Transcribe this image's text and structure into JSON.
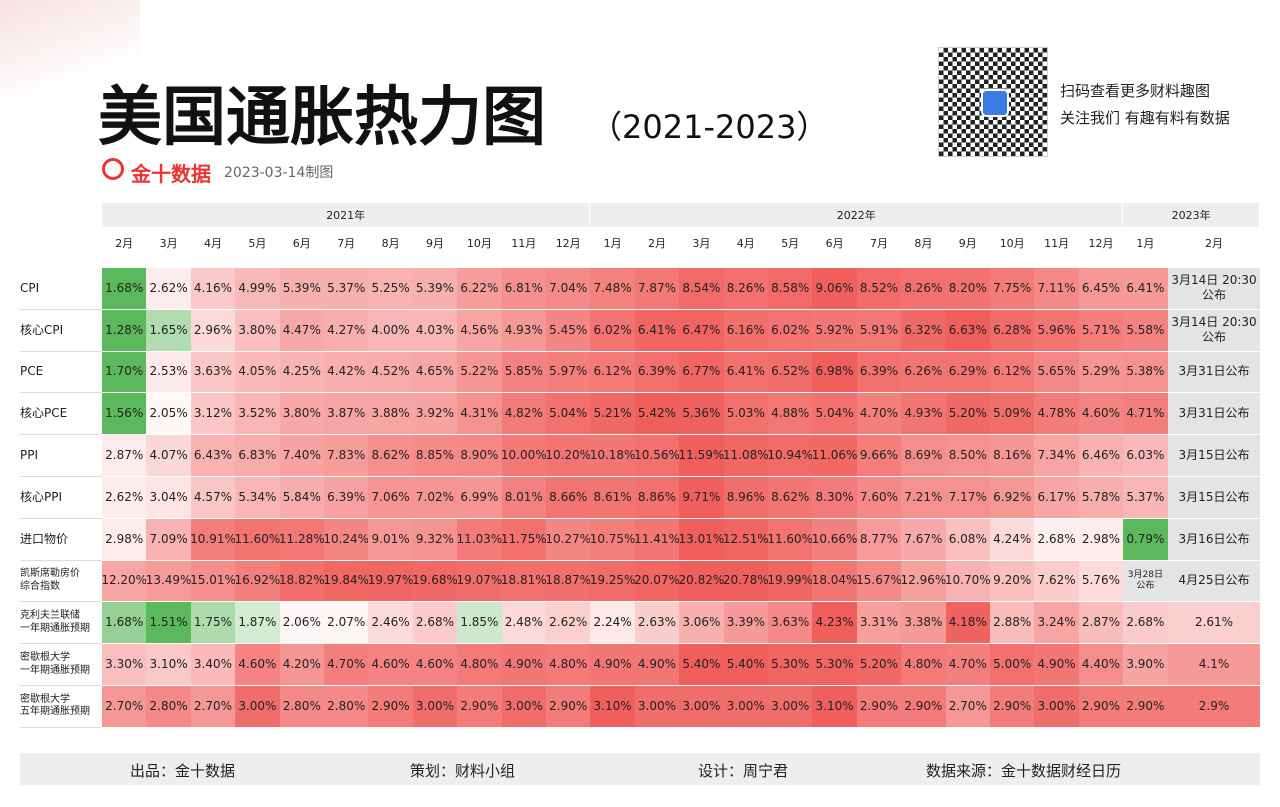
{
  "header": {
    "title": "美国通胀热力图",
    "period": "（2021-2023）",
    "brand": "金十数据",
    "date": "2023-03-14制图",
    "qr_lines": [
      "扫码查看更多财料趣图",
      "关注我们 有趣有料有数据"
    ]
  },
  "table": {
    "groups": [
      {
        "year": "2021年",
        "months": [
          "2月",
          "3月",
          "4月",
          "5月",
          "6月",
          "7月",
          "8月",
          "9月",
          "10月",
          "11月",
          "12月"
        ]
      },
      {
        "year": "2022年",
        "months": [
          "1月",
          "2月",
          "3月",
          "4月",
          "5月",
          "6月",
          "7月",
          "8月",
          "9月",
          "10月",
          "11月",
          "12月"
        ]
      },
      {
        "year": "2023年",
        "months": [
          "1月",
          "2月"
        ]
      }
    ],
    "rows": [
      {
        "label": "CPI",
        "cells": [
          "1.68%",
          "2.62%",
          "4.16%",
          "4.99%",
          "5.39%",
          "5.37%",
          "5.25%",
          "5.39%",
          "6.22%",
          "6.81%",
          "7.04%",
          "7.48%",
          "7.87%",
          "8.54%",
          "8.26%",
          "8.58%",
          "9.06%",
          "8.52%",
          "8.26%",
          "8.20%",
          "7.75%",
          "7.11%",
          "6.45%",
          "6.41%",
          "3月14日\n20:30公布"
        ]
      },
      {
        "label": "核心CPI",
        "cells": [
          "1.28%",
          "1.65%",
          "2.96%",
          "3.80%",
          "4.47%",
          "4.27%",
          "4.00%",
          "4.03%",
          "4.56%",
          "4.93%",
          "5.45%",
          "6.02%",
          "6.41%",
          "6.47%",
          "6.16%",
          "6.02%",
          "5.92%",
          "5.91%",
          "6.32%",
          "6.63%",
          "6.28%",
          "5.96%",
          "5.71%",
          "5.58%",
          "3月14日\n20:30公布"
        ]
      },
      {
        "label": "PCE",
        "cells": [
          "1.70%",
          "2.53%",
          "3.63%",
          "4.05%",
          "4.25%",
          "4.42%",
          "4.52%",
          "4.65%",
          "5.22%",
          "5.85%",
          "5.97%",
          "6.12%",
          "6.39%",
          "6.77%",
          "6.41%",
          "6.52%",
          "6.98%",
          "6.39%",
          "6.26%",
          "6.29%",
          "6.12%",
          "5.65%",
          "5.29%",
          "5.38%",
          "3月31日公布"
        ]
      },
      {
        "label": "核心PCE",
        "cells": [
          "1.56%",
          "2.05%",
          "3.12%",
          "3.52%",
          "3.80%",
          "3.87%",
          "3.88%",
          "3.92%",
          "4.31%",
          "4.82%",
          "5.04%",
          "5.21%",
          "5.42%",
          "5.36%",
          "5.03%",
          "4.88%",
          "5.04%",
          "4.70%",
          "4.93%",
          "5.20%",
          "5.09%",
          "4.78%",
          "4.60%",
          "4.71%",
          "3月31日公布"
        ]
      },
      {
        "label": "PPI",
        "cells": [
          "2.87%",
          "4.07%",
          "6.43%",
          "6.83%",
          "7.40%",
          "7.83%",
          "8.62%",
          "8.85%",
          "8.90%",
          "10.00%",
          "10.20%",
          "10.18%",
          "10.56%",
          "11.59%",
          "11.08%",
          "10.94%",
          "11.06%",
          "9.66%",
          "8.69%",
          "8.50%",
          "8.16%",
          "7.34%",
          "6.46%",
          "6.03%",
          "3月15日公布"
        ]
      },
      {
        "label": "核心PPI",
        "cells": [
          "2.62%",
          "3.04%",
          "4.57%",
          "5.34%",
          "5.84%",
          "6.39%",
          "7.06%",
          "7.02%",
          "6.99%",
          "8.01%",
          "8.66%",
          "8.61%",
          "8.86%",
          "9.71%",
          "8.96%",
          "8.62%",
          "8.30%",
          "7.60%",
          "7.21%",
          "7.17%",
          "6.92%",
          "6.17%",
          "5.78%",
          "5.37%",
          "3月15日公布"
        ]
      },
      {
        "label": "进口物价",
        "cells": [
          "2.98%",
          "7.09%",
          "10.91%",
          "11.60%",
          "11.28%",
          "10.24%",
          "9.01%",
          "9.32%",
          "11.03%",
          "11.75%",
          "10.27%",
          "10.75%",
          "11.41%",
          "13.01%",
          "12.51%",
          "11.60%",
          "10.66%",
          "8.77%",
          "7.67%",
          "6.08%",
          "4.24%",
          "2.68%",
          "2.98%",
          "0.79%",
          "3月16日公布"
        ]
      },
      {
        "label": "凯斯席勒房价\n综合指数",
        "cells": [
          "12.20%",
          "13.49%",
          "15.01%",
          "16.92%",
          "18.82%",
          "19.84%",
          "19.97%",
          "19.68%",
          "19.07%",
          "18.81%",
          "18.87%",
          "19.25%",
          "20.07%",
          "20.82%",
          "20.78%",
          "19.99%",
          "18.04%",
          "15.67%",
          "12.96%",
          "10.70%",
          "9.20%",
          "7.62%",
          "5.76%",
          "3月28日\n公布",
          "4月25日公布"
        ]
      },
      {
        "label": "克利夫兰联储\n一年期通胀预期",
        "cells": [
          "1.68%",
          "1.51%",
          "1.75%",
          "1.87%",
          "2.06%",
          "2.07%",
          "2.46%",
          "2.68%",
          "1.85%",
          "2.48%",
          "2.62%",
          "2.24%",
          "2.63%",
          "3.06%",
          "3.39%",
          "3.63%",
          "4.23%",
          "3.31%",
          "3.38%",
          "4.18%",
          "2.88%",
          "3.24%",
          "2.87%",
          "2.68%",
          "2.61%"
        ]
      },
      {
        "label": "密歇根大学\n一年期通胀预期",
        "cells": [
          "3.30%",
          "3.10%",
          "3.40%",
          "4.60%",
          "4.20%",
          "4.70%",
          "4.60%",
          "4.60%",
          "4.80%",
          "4.90%",
          "4.80%",
          "4.90%",
          "4.90%",
          "5.40%",
          "5.40%",
          "5.30%",
          "5.30%",
          "5.20%",
          "4.80%",
          "4.70%",
          "5.00%",
          "4.90%",
          "4.40%",
          "3.90%",
          "4.1%"
        ]
      },
      {
        "label": "密歇根大学\n五年期通胀预期",
        "cells": [
          "2.70%",
          "2.80%",
          "2.70%",
          "3.00%",
          "2.80%",
          "2.80%",
          "2.90%",
          "3.00%",
          "2.90%",
          "3.00%",
          "2.90%",
          "3.10%",
          "3.00%",
          "3.00%",
          "3.00%",
          "3.00%",
          "3.10%",
          "2.90%",
          "2.90%",
          "2.70%",
          "2.90%",
          "3.00%",
          "2.90%",
          "2.90%",
          "2.9%"
        ]
      }
    ]
  },
  "footer": [
    "出品：金十数据",
    "策划：财料小组",
    "设计：周宁君",
    "数据来源：金十数据财经日历"
  ]
}
